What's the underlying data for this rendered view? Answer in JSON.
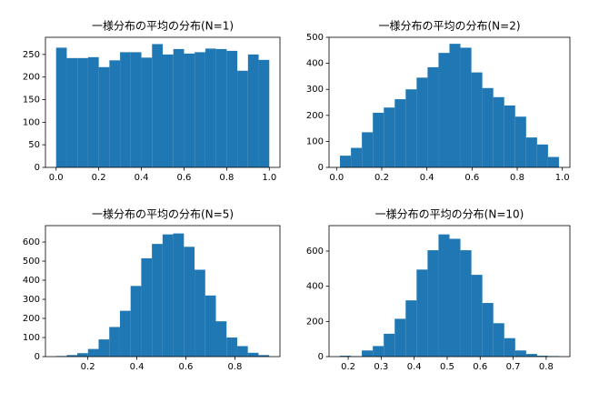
{
  "chart_data": [
    {
      "type": "histogram",
      "title": "一様分布の平均の分布(N=1)",
      "color": "#1f77b4",
      "bins": [
        0,
        0.05,
        0.1,
        0.15,
        0.2,
        0.25,
        0.3,
        0.35,
        0.4,
        0.45,
        0.5,
        0.55,
        0.6,
        0.65,
        0.7,
        0.75,
        0.8,
        0.85,
        0.9,
        0.95,
        1.0
      ],
      "counts": [
        265,
        242,
        242,
        244,
        222,
        237,
        255,
        255,
        243,
        273,
        250,
        262,
        252,
        255,
        263,
        262,
        258,
        214,
        250,
        238
      ],
      "xlim": [
        -0.05,
        1.05
      ],
      "ylim": [
        0,
        288
      ],
      "xticks": [
        {
          "value": 0,
          "label": "0.0"
        },
        0.2,
        0.4,
        0.6,
        0.8,
        {
          "value": 1,
          "label": "1.0"
        }
      ],
      "yticks": [
        0,
        50,
        100,
        150,
        200,
        250
      ]
    },
    {
      "type": "histogram",
      "title": "一様分布の平均の分布(N=2)",
      "color": "#1f77b4",
      "bins": [
        0.015,
        0.0635,
        0.112,
        0.1605,
        0.209,
        0.2575,
        0.306,
        0.3545,
        0.403,
        0.4515,
        0.5,
        0.5485,
        0.597,
        0.6455,
        0.694,
        0.7425,
        0.791,
        0.8395,
        0.888,
        0.9365,
        0.985
      ],
      "counts": [
        45,
        75,
        135,
        210,
        230,
        262,
        300,
        345,
        385,
        440,
        475,
        460,
        365,
        305,
        270,
        238,
        195,
        115,
        88,
        40
      ],
      "xlim": [
        -0.0335,
        1.0335
      ],
      "ylim": [
        0,
        500
      ],
      "xticks": [
        {
          "value": 0,
          "label": "0.0"
        },
        0.2,
        0.4,
        0.6,
        0.8,
        {
          "value": 1,
          "label": "1.0"
        }
      ],
      "yticks": [
        0,
        100,
        200,
        300,
        400,
        500
      ]
    },
    {
      "type": "histogram",
      "title": "一様分布の平均の分布(N=5)",
      "color": "#1f77b4",
      "bins": [
        0.07,
        0.1135,
        0.157,
        0.2005,
        0.244,
        0.2875,
        0.331,
        0.3745,
        0.418,
        0.4615,
        0.505,
        0.5485,
        0.592,
        0.6355,
        0.679,
        0.7225,
        0.766,
        0.8095,
        0.853,
        0.8965,
        0.94
      ],
      "counts": [
        3,
        8,
        18,
        40,
        90,
        155,
        240,
        370,
        515,
        590,
        640,
        645,
        575,
        455,
        320,
        185,
        100,
        55,
        20,
        8
      ],
      "xlim": [
        0.027,
        0.984
      ],
      "ylim": [
        0,
        686
      ],
      "xticks": [
        0.2,
        0.4,
        0.6,
        0.8
      ],
      "yticks": [
        0,
        100,
        200,
        300,
        400,
        500,
        600
      ]
    },
    {
      "type": "histogram",
      "title": "一様分布の平均の分布(N=10)",
      "color": "#1f77b4",
      "bins": [
        0.175,
        0.2082,
        0.2414,
        0.2746,
        0.3078,
        0.341,
        0.3742,
        0.4074,
        0.4406,
        0.4738,
        0.507,
        0.5402,
        0.5734,
        0.6066,
        0.6398,
        0.673,
        0.7062,
        0.7394,
        0.7726,
        0.8058,
        0.839
      ],
      "counts": [
        5,
        2,
        35,
        60,
        130,
        215,
        320,
        495,
        605,
        695,
        670,
        605,
        465,
        305,
        190,
        105,
        35,
        15,
        5,
        3
      ],
      "xlim": [
        0.142,
        0.872
      ],
      "ylim": [
        0,
        745
      ],
      "xticks": [
        0.2,
        0.3,
        0.4,
        0.5,
        0.6,
        0.7,
        0.8
      ],
      "yticks": [
        0,
        200,
        400,
        600
      ]
    }
  ]
}
